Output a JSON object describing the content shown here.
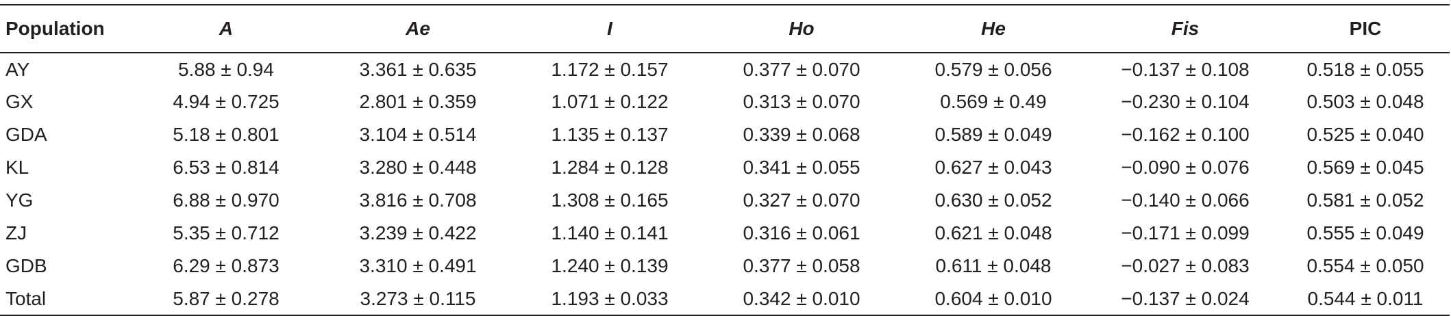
{
  "table": {
    "headers": [
      "Population",
      "A",
      "Ae",
      "I",
      "Ho",
      "He",
      "Fis",
      "PIC"
    ],
    "rows": [
      [
        "AY",
        "5.88 ± 0.94",
        "3.361 ± 0.635",
        "1.172 ± 0.157",
        "0.377 ± 0.070",
        "0.579 ± 0.056",
        "−0.137 ± 0.108",
        "0.518 ± 0.055"
      ],
      [
        "GX",
        "4.94 ± 0.725",
        "2.801 ± 0.359",
        "1.071 ± 0.122",
        "0.313 ± 0.070",
        "0.569 ± 0.49",
        "−0.230 ± 0.104",
        "0.503 ± 0.048"
      ],
      [
        "GDA",
        "5.18 ± 0.801",
        "3.104 ± 0.514",
        "1.135 ± 0.137",
        "0.339 ± 0.068",
        "0.589 ± 0.049",
        "−0.162 ± 0.100",
        "0.525 ± 0.040"
      ],
      [
        "KL",
        "6.53 ± 0.814",
        "3.280 ± 0.448",
        "1.284 ± 0.128",
        "0.341 ± 0.055",
        "0.627 ± 0.043",
        "−0.090 ± 0.076",
        "0.569 ± 0.045"
      ],
      [
        "YG",
        "6.88 ± 0.970",
        "3.816 ± 0.708",
        "1.308 ± 0.165",
        "0.327 ± 0.070",
        "0.630 ± 0.052",
        "−0.140 ± 0.066",
        "0.581 ± 0.052"
      ],
      [
        "ZJ",
        "5.35 ± 0.712",
        "3.239 ± 0.422",
        "1.140 ± 0.141",
        "0.316 ± 0.061",
        "0.621 ± 0.048",
        "−0.171 ± 0.099",
        "0.555 ± 0.049"
      ],
      [
        "GDB",
        "6.29 ± 0.873",
        "3.310 ± 0.491",
        "1.240 ± 0.139",
        "0.377 ± 0.058",
        "0.611 ± 0.048",
        "−0.027 ± 0.083",
        "0.554 ± 0.050"
      ],
      [
        "Total",
        "5.87 ± 0.278",
        "3.273 ± 0.115",
        "1.193 ± 0.033",
        "0.342 ± 0.010",
        "0.604 ± 0.010",
        "−0.137 ± 0.024",
        "0.544 ± 0.011"
      ]
    ]
  },
  "colors": {
    "text": "#231f20",
    "rule": "#231f20",
    "background": "#ffffff"
  }
}
